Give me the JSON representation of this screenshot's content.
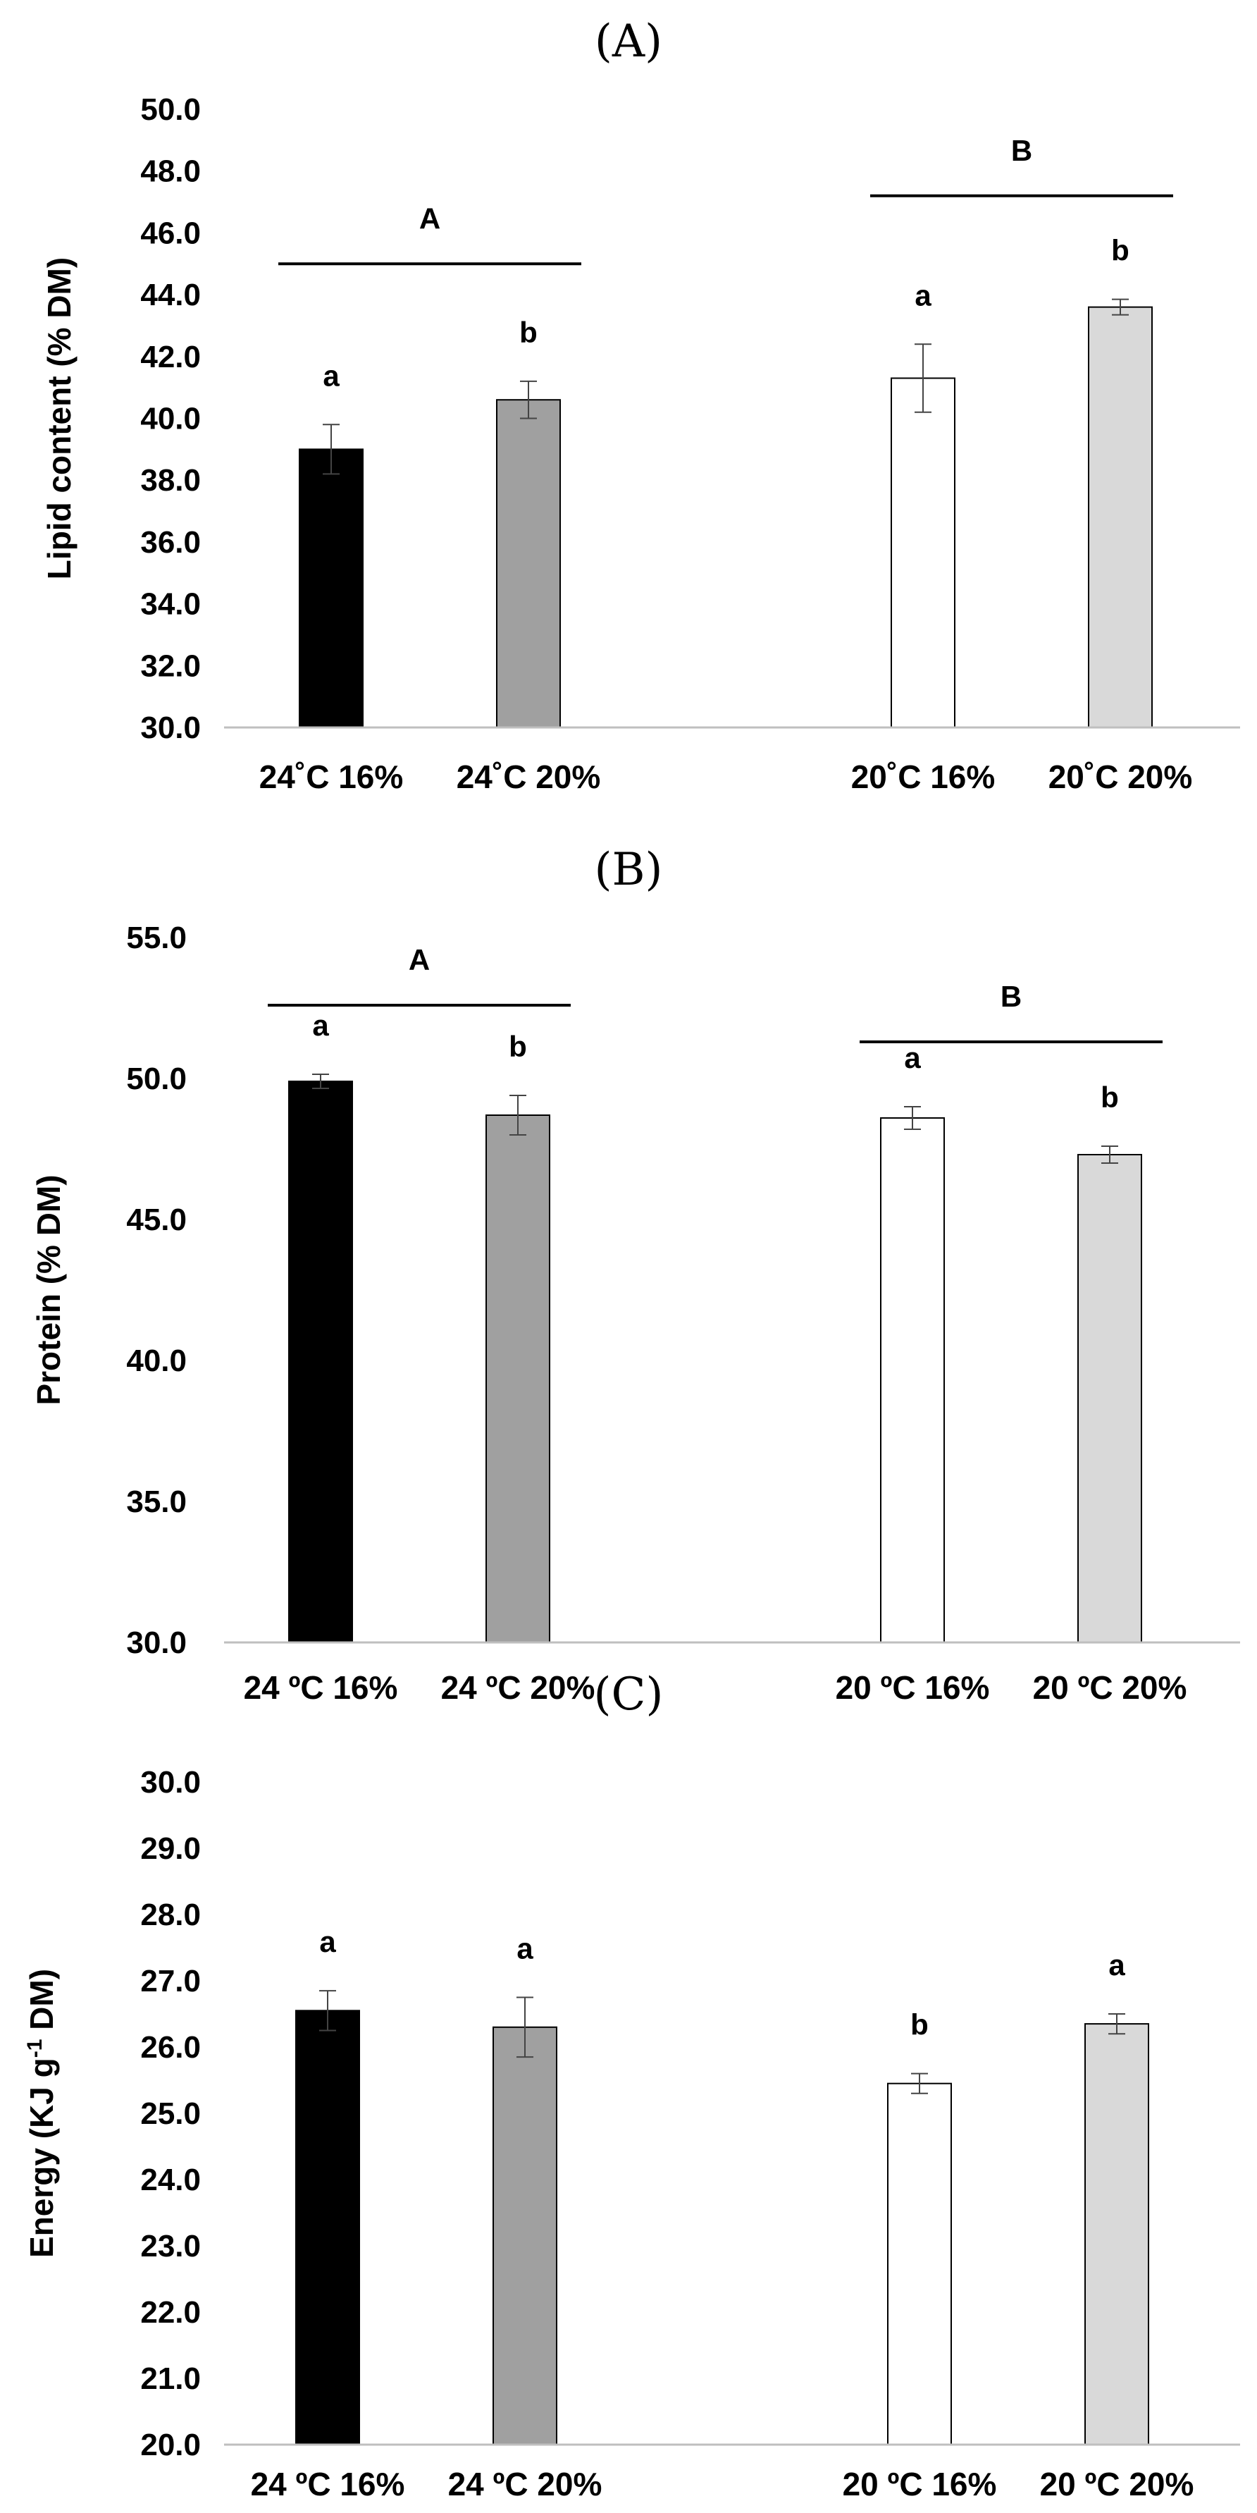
{
  "figure": {
    "panels": [
      "(A)",
      "(B)",
      "(C)"
    ]
  },
  "colors": {
    "bar_24_16": "#000000",
    "bar_24_20": "#a0a0a0",
    "bar_20_16": "#ffffff",
    "bar_20_20": "#d9d9d9",
    "axis": "#bfbfbf",
    "text": "#000000"
  },
  "chart_data": [
    {
      "panel": "(A)",
      "type": "bar",
      "ylabel": "Lipid content (% DM)",
      "ylim": [
        30,
        50
      ],
      "ytick_step": 2,
      "ytick_labels": [
        "30.0",
        "32.0",
        "34.0",
        "36.0",
        "38.0",
        "40.0",
        "42.0",
        "44.0",
        "46.0",
        "48.0",
        "50.0"
      ],
      "categories": [
        "24˚C 16%",
        "24˚C 20%",
        "20˚C 16%",
        "20˚C 20%"
      ],
      "values": [
        39.0,
        40.6,
        41.3,
        43.6
      ],
      "errors": [
        0.8,
        0.6,
        1.1,
        0.25
      ],
      "letters": [
        "a",
        "b",
        "a",
        "b"
      ],
      "groups": [
        {
          "label": "A",
          "value": 45.0,
          "from": 0,
          "to": 1
        },
        {
          "label": "B",
          "value": 47.2,
          "from": 2,
          "to": 3
        }
      ]
    },
    {
      "panel": "(B)",
      "type": "bar",
      "ylabel": "Protein (% DM)",
      "ylim": [
        30,
        55
      ],
      "ytick_step": 5,
      "ytick_labels": [
        "30.0",
        "35.0",
        "40.0",
        "45.0",
        "50.0",
        "55.0"
      ],
      "categories": [
        "24 ºC 16%",
        "24 ºC 20%",
        "20 ºC 16%",
        "20 ºC 20%"
      ],
      "values": [
        49.9,
        48.7,
        48.6,
        47.3
      ],
      "errors": [
        0.25,
        0.7,
        0.4,
        0.3
      ],
      "letters": [
        "a",
        "b",
        "a",
        "b"
      ],
      "groups": [
        {
          "label": "A",
          "value": 52.6,
          "from": 0,
          "to": 1
        },
        {
          "label": "B",
          "value": 51.3,
          "from": 2,
          "to": 3
        }
      ]
    },
    {
      "panel": "(C)",
      "type": "bar",
      "ylabel": "Energy (KJ g",
      "ylabel_sup": "-1",
      "ylabel_tail": " DM)",
      "ylim": [
        20,
        30
      ],
      "ytick_step": 1,
      "ytick_labels": [
        "20.0",
        "21.0",
        "22.0",
        "23.0",
        "24.0",
        "25.0",
        "26.0",
        "27.0",
        "28.0",
        "29.0",
        "30.0"
      ],
      "categories": [
        "24 ºC 16%",
        "24 ºC 20%",
        "20 ºC 16%",
        "20 ºC 20%"
      ],
      "values": [
        26.55,
        26.3,
        25.45,
        26.35
      ],
      "errors": [
        0.3,
        0.45,
        0.15,
        0.15
      ],
      "letters": [
        "a",
        "a",
        "b",
        "a"
      ],
      "groups": []
    }
  ]
}
